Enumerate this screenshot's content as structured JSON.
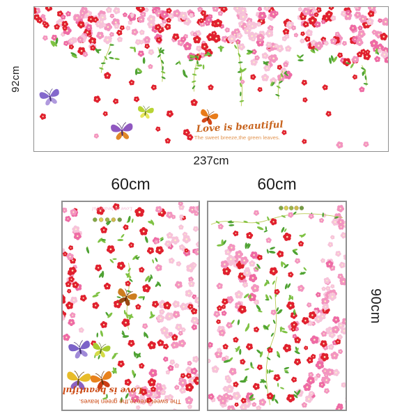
{
  "page": {
    "background": "#ffffff"
  },
  "top_panel": {
    "height_label": "92cm",
    "width_label": "237cm",
    "slogan_script": "Love is beautiful",
    "slogan_sub": "The sweet breeze,the green leaves."
  },
  "sheets": {
    "left": {
      "width_label": "60cm",
      "slogan_script": "Love is beautiful",
      "slogan_sub": "The sweet breeze,the green leaves."
    },
    "right": {
      "width_label": "60cm",
      "height_label": "90cm"
    }
  },
  "palette": {
    "pink_light": "#f7c3da",
    "pink": "#f395c0",
    "pink_deep": "#ee6ba5",
    "red": "#e0202e",
    "green": "#4ea233",
    "green_light": "#7fc244",
    "vine": "#b9cb52",
    "slogan": "#c8641e",
    "slogan_light": "#e29552",
    "slogan_flip": "#cc4a14",
    "mini_pink": "#f2a6c8",
    "label": "#1c1c1c",
    "border": "#8f8f8f"
  }
}
